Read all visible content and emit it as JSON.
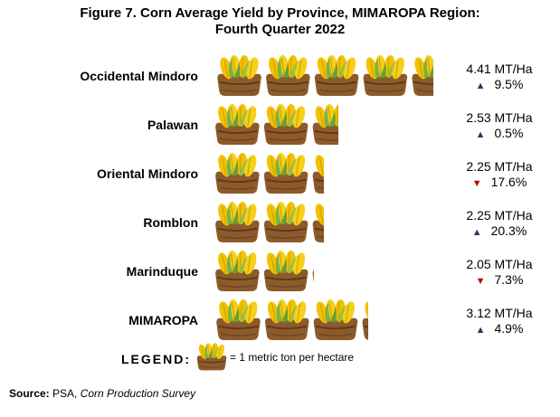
{
  "chart_data": {
    "type": "pictograph",
    "title_line1": "Figure 7. Corn Average Yield by Province, MIMAROPA Region:",
    "title_line2": "Fourth Quarter 2022",
    "unit_icon": "corn-sack-icon",
    "rows": [
      {
        "province": "Occidental Mindoro",
        "value": 4.41,
        "value_text": "4.41 MT/Ha",
        "change_dir": "up",
        "change_text": "9.5%"
      },
      {
        "province": "Palawan",
        "value": 2.53,
        "value_text": "2.53 MT/Ha",
        "change_dir": "up",
        "change_text": "0.5%"
      },
      {
        "province": "Oriental Mindoro",
        "value": 2.25,
        "value_text": "2.25 MT/Ha",
        "change_dir": "down",
        "change_text": "17.6%"
      },
      {
        "province": "Romblon",
        "value": 2.25,
        "value_text": "2.25 MT/Ha",
        "change_dir": "up",
        "change_text": "20.3%"
      },
      {
        "province": "Marinduque",
        "value": 2.05,
        "value_text": "2.05 MT/Ha",
        "change_dir": "down",
        "change_text": "7.3%"
      },
      {
        "province": "MIMAROPA",
        "value": 3.12,
        "value_text": "3.12 MT/Ha",
        "change_dir": "up",
        "change_text": "4.9%"
      }
    ],
    "colors": {
      "up": "#1f3864",
      "down": "#c00000",
      "corn": "#f2c200",
      "husk": "#7cb342",
      "sack": "#8d5a2b"
    }
  },
  "legend": {
    "label": "LEGEND:",
    "text": "= 1 metric ton per hectare"
  },
  "source": {
    "label": "Source:",
    "text": " PSA, ",
    "italic": "Corn Production Survey"
  }
}
